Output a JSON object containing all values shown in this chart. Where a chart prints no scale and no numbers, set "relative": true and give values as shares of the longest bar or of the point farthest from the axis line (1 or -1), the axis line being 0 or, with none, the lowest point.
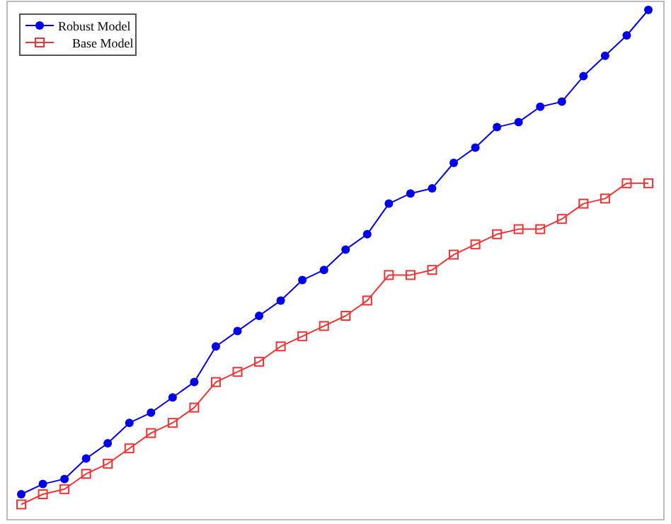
{
  "chart_data": {
    "type": "line",
    "relative": true,
    "categories": [
      null,
      null,
      null,
      null,
      null,
      null,
      null,
      null,
      null,
      null,
      null,
      null,
      null,
      null,
      null,
      null,
      null,
      null,
      null,
      null,
      null,
      null,
      null,
      null,
      null,
      null,
      null,
      null,
      null,
      null
    ],
    "series": [
      {
        "name": "Robust Model",
        "color": "#0000ee",
        "marker": "circle",
        "values": [
          0.05,
          0.07,
          0.08,
          0.12,
          0.15,
          0.19,
          0.21,
          0.24,
          0.27,
          0.34,
          0.37,
          0.4,
          0.43,
          0.47,
          0.49,
          0.53,
          0.56,
          0.62,
          0.64,
          0.65,
          0.7,
          0.73,
          0.77,
          0.78,
          0.81,
          0.82,
          0.87,
          0.91,
          0.95,
          1
        ]
      },
      {
        "name": "Base Model",
        "color": "#ee3333",
        "marker": "square",
        "values": [
          0.03,
          0.05,
          0.06,
          0.09,
          0.11,
          0.14,
          0.17,
          0.19,
          0.22,
          0.27,
          0.29,
          0.31,
          0.34,
          0.36,
          0.38,
          0.4,
          0.43,
          0.48,
          0.48,
          0.49,
          0.52,
          0.54,
          0.56,
          0.57,
          0.57,
          0.59,
          0.62,
          0.63,
          0.66,
          0.66
        ]
      }
    ],
    "legend": "top left",
    "grid": false,
    "line_style": "solid"
  }
}
